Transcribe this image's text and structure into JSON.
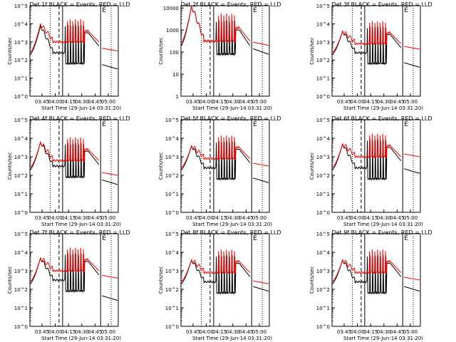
{
  "chart_data": {
    "type": "line",
    "layout": "3x3 grid",
    "yscale": "log",
    "xlabel": "Start Time (29-Jun-14 03:31:20)",
    "ylabel": "Counts/sec",
    "x_ticks": [
      "03:45",
      "04:00",
      "04:15",
      "04:30",
      "04:45",
      "05:00"
    ],
    "colors": {
      "events": "#000000",
      "lld": "#ff0000"
    },
    "time_range_min": [
      0,
      100
    ],
    "legend_glyph": "É",
    "panels": [
      {
        "title": "Det 1f BLACK = Events, RED = LLD",
        "y_ticks": [
          "10^0",
          "10^1",
          "10^2",
          "10^3",
          "10^4",
          "10^5"
        ],
        "ylim": [
          0,
          5
        ],
        "events_peak_log": 3.9,
        "lld_peak_log": 4.0,
        "events_plateau_log": 2.2,
        "lld_plateau_log": 3.0,
        "tail_log": 1.6,
        "lld_tail_log": 2.5
      },
      {
        "title": "Det 2f BLACK = Events, RED = LLD",
        "y_ticks": [
          "1",
          "10",
          "100",
          "1000",
          "10000"
        ],
        "ylim": [
          0,
          4.1
        ],
        "events_peak_log": 4.1,
        "lld_peak_log": 4.1,
        "events_plateau_log": 2.3,
        "lld_plateau_log": 2.5,
        "tail_log": 2.0,
        "lld_tail_log": 2.3
      },
      {
        "title": "Det 3f BLACK = Events, RED = LLD",
        "y_ticks": [
          "10^0",
          "10^1",
          "10^2",
          "10^3",
          "10^4",
          "10^5"
        ],
        "ylim": [
          0,
          5
        ],
        "events_peak_log": 3.6,
        "lld_peak_log": 3.6,
        "events_plateau_log": 2.2,
        "lld_plateau_log": 2.9,
        "tail_log": 1.7,
        "lld_tail_log": 2.6
      },
      {
        "title": "Det 4f BLACK = Events, RED = LLD",
        "y_ticks": [
          "10^0",
          "10^1",
          "10^2",
          "10^3",
          "10^4",
          "10^5"
        ],
        "ylim": [
          0,
          5
        ],
        "events_peak_log": 3.8,
        "lld_peak_log": 3.8,
        "events_plateau_log": 2.3,
        "lld_plateau_log": 2.8,
        "tail_log": 1.6,
        "lld_tail_log": 2.0
      },
      {
        "title": "Det 5f BLACK = Events, RED = LLD",
        "y_ticks": [
          "10^0",
          "10^1",
          "10^2",
          "10^3",
          "10^4",
          "10^5"
        ],
        "ylim": [
          0,
          5
        ],
        "events_peak_log": 3.6,
        "lld_peak_log": 3.6,
        "events_plateau_log": 2.2,
        "lld_plateau_log": 2.9,
        "tail_log": 1.7,
        "lld_tail_log": 2.5
      },
      {
        "title": "Det 6f BLACK = Events, RED = LLD",
        "y_ticks": [
          "10^0",
          "10^1",
          "10^2",
          "10^3",
          "10^4",
          "10^5"
        ],
        "ylim": [
          0,
          5
        ],
        "events_peak_log": 3.7,
        "lld_peak_log": 3.7,
        "events_plateau_log": 2.2,
        "lld_plateau_log": 3.0,
        "tail_log": 2.2,
        "lld_tail_log": 3.0
      },
      {
        "title": "Det 7f BLACK = Events, RED = LLD",
        "y_ticks": [
          "10^0",
          "10^1",
          "10^2",
          "10^3",
          "10^4",
          "10^5"
        ],
        "ylim": [
          0,
          5
        ],
        "events_peak_log": 3.7,
        "lld_peak_log": 3.7,
        "events_plateau_log": 2.3,
        "lld_plateau_log": 3.0,
        "tail_log": 1.5,
        "lld_tail_log": 2.6
      },
      {
        "title": "Det 8f BLACK = Events, RED = LLD",
        "y_ticks": [
          "10^0",
          "10^1",
          "10^2",
          "10^3",
          "10^4",
          "10^5"
        ],
        "ylim": [
          0,
          5
        ],
        "events_peak_log": 3.6,
        "lld_peak_log": 3.6,
        "events_plateau_log": 2.2,
        "lld_plateau_log": 2.9,
        "tail_log": 2.0,
        "lld_tail_log": 2.3
      },
      {
        "title": "Det 9f BLACK = Events, RED = LLD",
        "y_ticks": [
          "10^0",
          "10^1",
          "10^2",
          "10^3",
          "10^4",
          "10^5"
        ],
        "ylim": [
          0,
          5
        ],
        "events_peak_log": 3.6,
        "lld_peak_log": 3.6,
        "events_plateau_log": 2.2,
        "lld_plateau_log": 2.9,
        "tail_log": 2.0,
        "lld_tail_log": 2.5
      }
    ]
  }
}
